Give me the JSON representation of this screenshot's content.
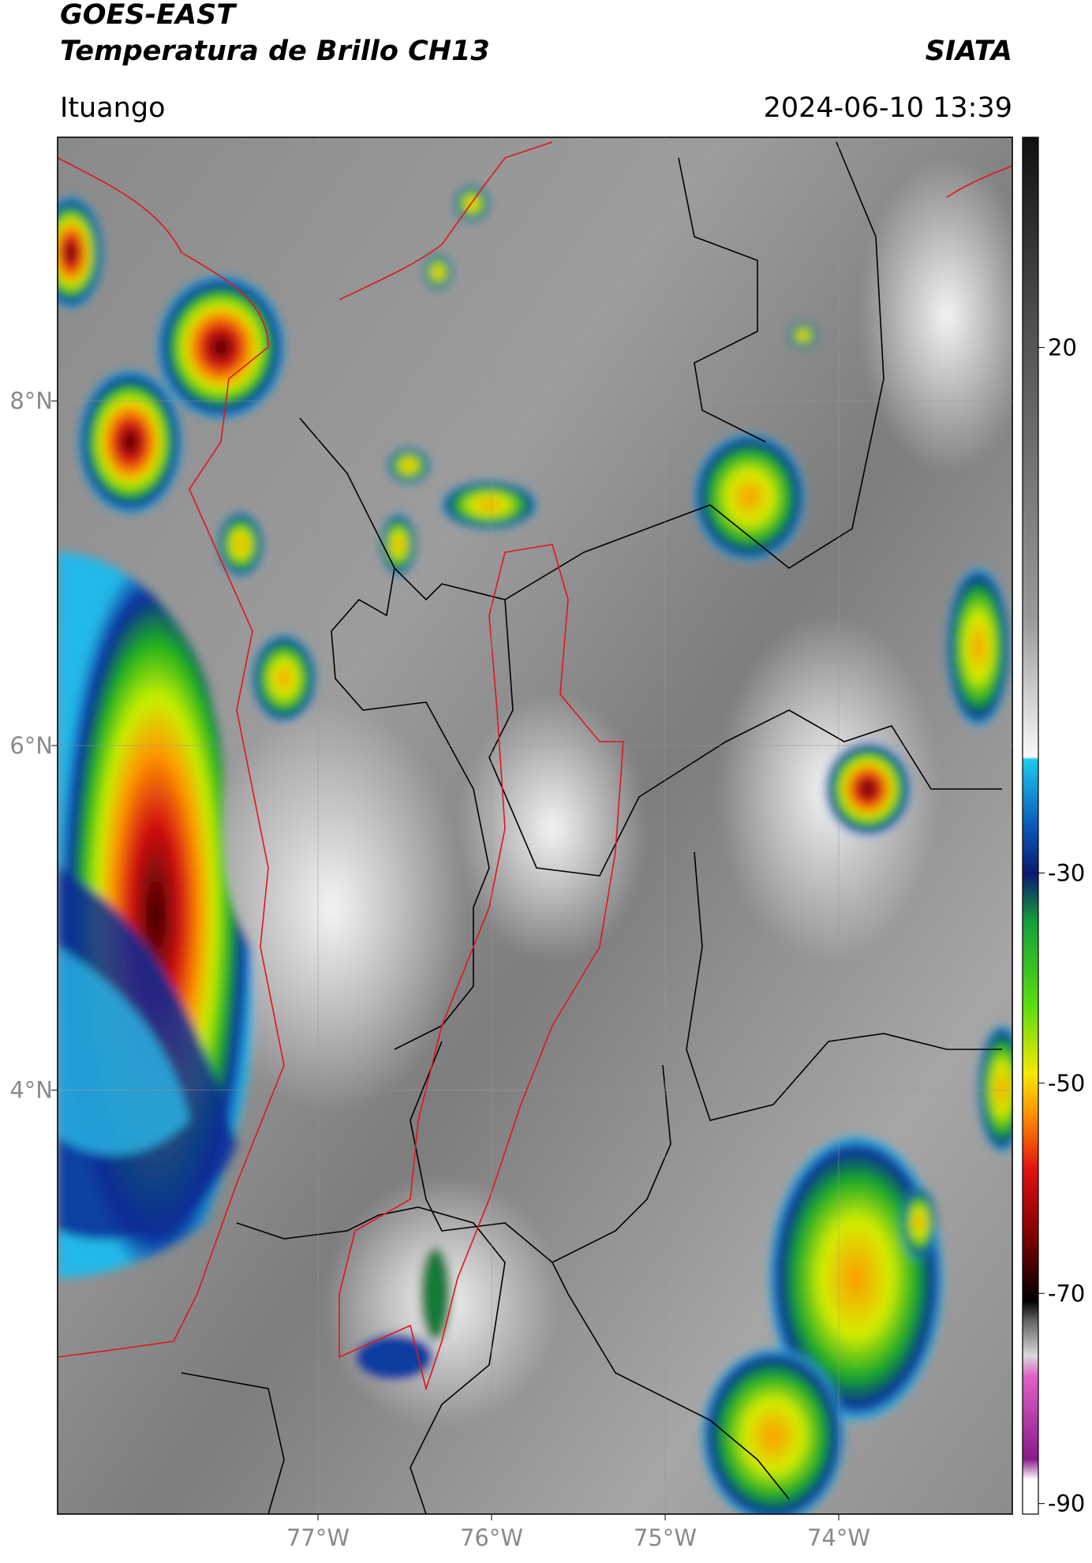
{
  "chart_data": {
    "type": "map",
    "title": "GOES-EAST",
    "subtitle": "Temperatura de Brillo CH13",
    "source": "SIATA",
    "location": "Ituango",
    "datetime": "2024-06-10 13:39",
    "xlim": [
      -78.5,
      -73.0
    ],
    "ylim": [
      1.54,
      9.53
    ],
    "xticks": [
      {
        "value": -77,
        "label": "77°W"
      },
      {
        "value": -76,
        "label": "76°W"
      },
      {
        "value": -75,
        "label": "75°W"
      },
      {
        "value": -74,
        "label": "74°W"
      }
    ],
    "yticks": [
      {
        "value": 8,
        "label": "8°N"
      },
      {
        "value": 6,
        "label": "6°N"
      },
      {
        "value": 4,
        "label": "4°N"
      }
    ],
    "grid": true,
    "colorbar": {
      "lim": [
        -91,
        40
      ],
      "ticks": [
        20,
        -30,
        -50,
        -70,
        -90
      ]
    }
  }
}
